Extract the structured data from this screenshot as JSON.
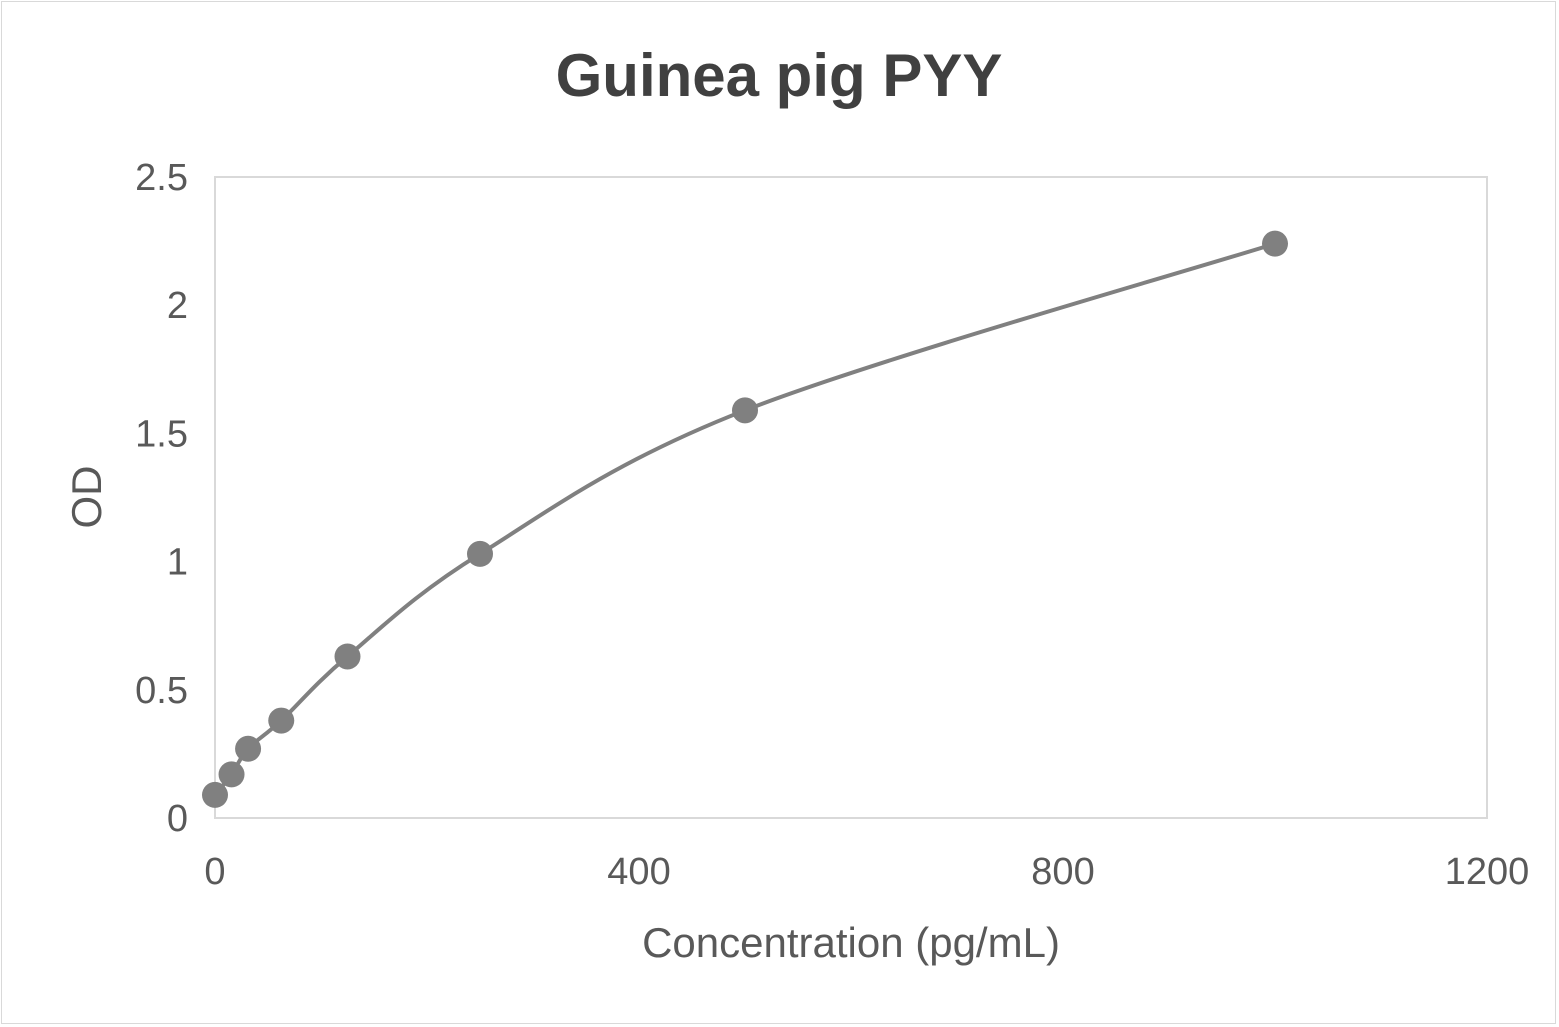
{
  "chart_data": {
    "type": "scatter",
    "title": "Guinea pig PYY",
    "xlabel": "Concentration (pg/mL)",
    "ylabel": "OD",
    "xlim": [
      0,
      1200
    ],
    "ylim": [
      0,
      2.5
    ],
    "x_ticks": [
      "0",
      "400",
      "800",
      "1200"
    ],
    "y_ticks": [
      "0",
      "0.5",
      "1",
      "1.5",
      "2",
      "2.5"
    ],
    "grid": false,
    "legend": "none",
    "smoothed_line": true,
    "series": [
      {
        "x": [
          0,
          15.6,
          31.2,
          62.5,
          125,
          250,
          500,
          1000
        ],
        "y": [
          0.09,
          0.17,
          0.27,
          0.38,
          0.63,
          1.03,
          1.59,
          2.24
        ],
        "color": "#808080"
      }
    ]
  }
}
